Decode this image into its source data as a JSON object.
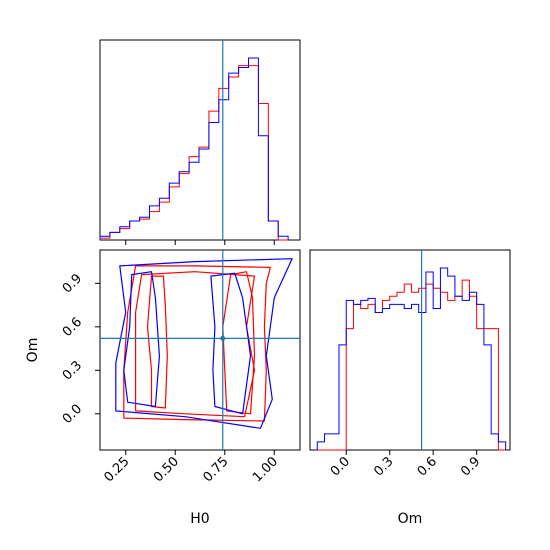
{
  "chart_data": {
    "type": "corner",
    "parameters": [
      "H0",
      "Om"
    ],
    "axis_labels": {
      "x_bottom_left": "H0",
      "x_bottom_right": "Om",
      "y_left": "Om"
    },
    "truth": {
      "H0": 0.74,
      "Om": 0.52
    },
    "colors": {
      "series_red": "#ff0000",
      "series_blue": "#0000ff",
      "truth": "#1f77b4"
    },
    "ranges": {
      "H0": [
        0.12,
        1.13
      ],
      "Om": [
        -0.25,
        1.13
      ]
    },
    "ticks": {
      "H0": {
        "values": [
          0.25,
          0.5,
          0.75,
          1.0
        ],
        "labels": [
          "0.25",
          "0.50",
          "0.75",
          "1.00"
        ]
      },
      "Om": {
        "values": [
          0.0,
          0.3,
          0.6,
          0.9
        ],
        "labels": [
          "0.0",
          "0.3",
          "0.6",
          "0.9"
        ]
      }
    },
    "histograms": {
      "H0": {
        "bins": [
          0.12,
          0.17,
          0.22,
          0.27,
          0.32,
          0.37,
          0.42,
          0.47,
          0.52,
          0.57,
          0.62,
          0.67,
          0.72,
          0.77,
          0.82,
          0.87,
          0.92,
          0.97,
          1.02,
          1.07
        ],
        "series": [
          {
            "color": "red",
            "counts": [
              0.01,
              0.04,
              0.06,
              0.1,
              0.11,
              0.15,
              0.2,
              0.28,
              0.35,
              0.44,
              0.49,
              0.68,
              0.8,
              0.86,
              0.92,
              0.92,
              0.72,
              0.1,
              0.0
            ]
          },
          {
            "color": "blue",
            "counts": [
              0.02,
              0.04,
              0.07,
              0.1,
              0.12,
              0.18,
              0.22,
              0.3,
              0.36,
              0.41,
              0.48,
              0.62,
              0.74,
              0.88,
              0.91,
              0.96,
              0.55,
              0.1,
              0.02
            ]
          }
        ]
      },
      "Om": {
        "bins": [
          -0.2,
          -0.15,
          -0.1,
          -0.05,
          0.0,
          0.05,
          0.1,
          0.15,
          0.2,
          0.25,
          0.3,
          0.35,
          0.4,
          0.45,
          0.5,
          0.55,
          0.6,
          0.65,
          0.7,
          0.75,
          0.8,
          0.85,
          0.9,
          0.95,
          1.0,
          1.05,
          1.1
        ],
        "series": [
          {
            "color": "red",
            "counts": [
              0.0,
              0.0,
              0.0,
              0.0,
              0.6,
              0.72,
              0.7,
              0.72,
              0.68,
              0.74,
              0.76,
              0.78,
              0.82,
              0.78,
              0.8,
              0.82,
              0.8,
              0.78,
              0.74,
              0.76,
              0.84,
              0.76,
              0.6,
              0.6,
              0.6,
              0.0
            ]
          },
          {
            "color": "blue",
            "counts": [
              0.04,
              0.08,
              0.08,
              0.52,
              0.74,
              0.72,
              0.74,
              0.75,
              0.68,
              0.7,
              0.72,
              0.72,
              0.7,
              0.72,
              0.68,
              0.88,
              0.7,
              0.9,
              0.86,
              0.76,
              0.74,
              0.78,
              0.72,
              0.52,
              0.08,
              0.04
            ]
          }
        ]
      }
    },
    "contours": [
      {
        "color": "red",
        "points": [
          [
            0.24,
            -0.03
          ],
          [
            0.55,
            -0.04
          ],
          [
            0.95,
            -0.05
          ],
          [
            0.96,
            0.3
          ],
          [
            0.95,
            0.6
          ],
          [
            0.96,
            0.9
          ],
          [
            0.98,
            1.01
          ],
          [
            0.6,
            1.02
          ],
          [
            0.3,
            1.02
          ],
          [
            0.26,
            0.7
          ],
          [
            0.24,
            0.3
          ]
        ]
      },
      {
        "color": "red",
        "points": [
          [
            0.3,
            0.02
          ],
          [
            0.55,
            0.0
          ],
          [
            0.85,
            -0.02
          ],
          [
            0.9,
            0.3
          ],
          [
            0.86,
            0.6
          ],
          [
            0.9,
            0.95
          ],
          [
            0.6,
            0.98
          ],
          [
            0.33,
            0.96
          ],
          [
            0.3,
            0.7
          ],
          [
            0.3,
            0.3
          ]
        ]
      },
      {
        "color": "red",
        "points": [
          [
            0.38,
            0.05
          ],
          [
            0.45,
            0.04
          ],
          [
            0.46,
            0.4
          ],
          [
            0.45,
            0.75
          ],
          [
            0.44,
            0.95
          ],
          [
            0.38,
            0.95
          ],
          [
            0.36,
            0.6
          ],
          [
            0.38,
            0.3
          ]
        ]
      },
      {
        "color": "red",
        "points": [
          [
            0.76,
            0.02
          ],
          [
            0.88,
            0.0
          ],
          [
            0.9,
            0.4
          ],
          [
            0.89,
            0.8
          ],
          [
            0.86,
            0.98
          ],
          [
            0.78,
            0.96
          ],
          [
            0.74,
            0.6
          ],
          [
            0.75,
            0.3
          ]
        ]
      },
      {
        "color": "blue",
        "points": [
          [
            0.2,
            0.02
          ],
          [
            0.55,
            -0.02
          ],
          [
            0.93,
            -0.1
          ],
          [
            0.99,
            0.1
          ],
          [
            0.96,
            0.4
          ],
          [
            1.0,
            0.8
          ],
          [
            1.09,
            1.07
          ],
          [
            0.6,
            1.05
          ],
          [
            0.22,
            1.02
          ],
          [
            0.25,
            0.7
          ],
          [
            0.2,
            0.35
          ]
        ]
      },
      {
        "color": "blue",
        "points": [
          [
            0.26,
            0.08
          ],
          [
            0.4,
            0.05
          ],
          [
            0.42,
            0.4
          ],
          [
            0.4,
            0.8
          ],
          [
            0.38,
            0.98
          ],
          [
            0.28,
            0.96
          ],
          [
            0.27,
            0.6
          ],
          [
            0.24,
            0.3
          ]
        ]
      },
      {
        "color": "blue",
        "points": [
          [
            0.7,
            0.05
          ],
          [
            0.84,
            0.0
          ],
          [
            0.88,
            0.4
          ],
          [
            0.84,
            0.8
          ],
          [
            0.8,
            0.97
          ],
          [
            0.68,
            0.95
          ],
          [
            0.7,
            0.6
          ],
          [
            0.69,
            0.3
          ]
        ]
      }
    ]
  }
}
